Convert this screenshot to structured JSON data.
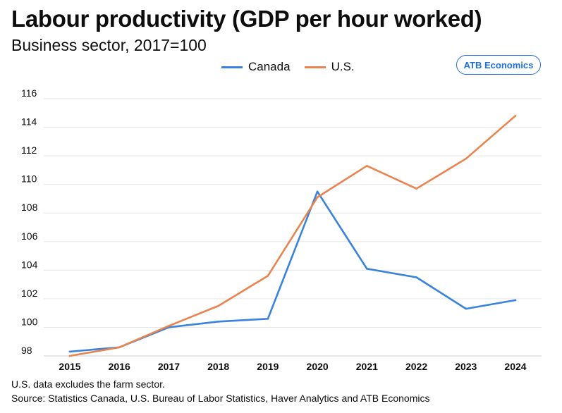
{
  "chart_data": {
    "type": "line",
    "title": "Labour productivity (GDP per hour worked)",
    "subtitle": "Business sector, 2017=100",
    "categories": [
      "2015",
      "2016",
      "2017",
      "2018",
      "2019",
      "2020",
      "2021",
      "2022",
      "2023",
      "2024"
    ],
    "series": [
      {
        "name": "Canada",
        "color": "#3a83dc",
        "values": [
          98.3,
          98.6,
          100.0,
          100.4,
          100.6,
          109.5,
          104.1,
          103.5,
          101.3,
          101.9
        ]
      },
      {
        "name": "U.S.",
        "color": "#e8844f",
        "values": [
          98.0,
          98.6,
          100.1,
          101.5,
          103.6,
          109.1,
          111.3,
          109.7,
          111.8,
          114.8
        ]
      }
    ],
    "yticks": [
      98,
      100,
      102,
      104,
      106,
      108,
      110,
      112,
      114,
      116
    ],
    "ylim": [
      98,
      116
    ],
    "xlabel": "",
    "ylabel": "",
    "grid": true,
    "legend_position": "top-center"
  },
  "branding": {
    "label": "ATB Economics",
    "color": "#1e6fd9"
  },
  "footer": {
    "note": "U.S. data excludes the farm sector.",
    "source": "Source: Statistics Canada, U.S. Bureau of Labor Statistics, Haver Analytics and ATB Economics"
  }
}
